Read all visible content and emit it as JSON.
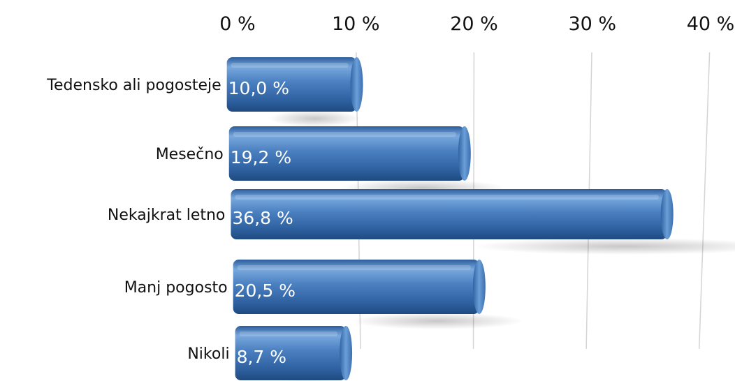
{
  "chart_data": {
    "type": "bar",
    "orientation": "horizontal",
    "style": "3d-cylinder",
    "categories": [
      "Tedensko ali pogosteje",
      "Mesečno",
      "Nekajkrat letno",
      "Manj pogosto",
      "Nikoli"
    ],
    "values": [
      10.0,
      19.2,
      36.8,
      20.5,
      8.7
    ],
    "value_labels": [
      "10,0 %",
      "19,2 %",
      "36,8 %",
      "20,5 %",
      "8,7 %"
    ],
    "xlim": [
      0,
      40
    ],
    "x_ticks": [
      0,
      10,
      20,
      30,
      40
    ],
    "x_tick_labels": [
      "0 %",
      "10 %",
      "20 %",
      "30 %",
      "40 %"
    ],
    "x_axis_position": "top",
    "grid": true,
    "legend": "none",
    "title": "",
    "xlabel": "",
    "ylabel": "",
    "colors": {
      "bar": "#3f73b3",
      "bar_light": "#78a8dd",
      "bar_dark": "#1f4a80",
      "grid": "#d4d4d4",
      "label": "#ffffff",
      "text": "#111111"
    }
  }
}
